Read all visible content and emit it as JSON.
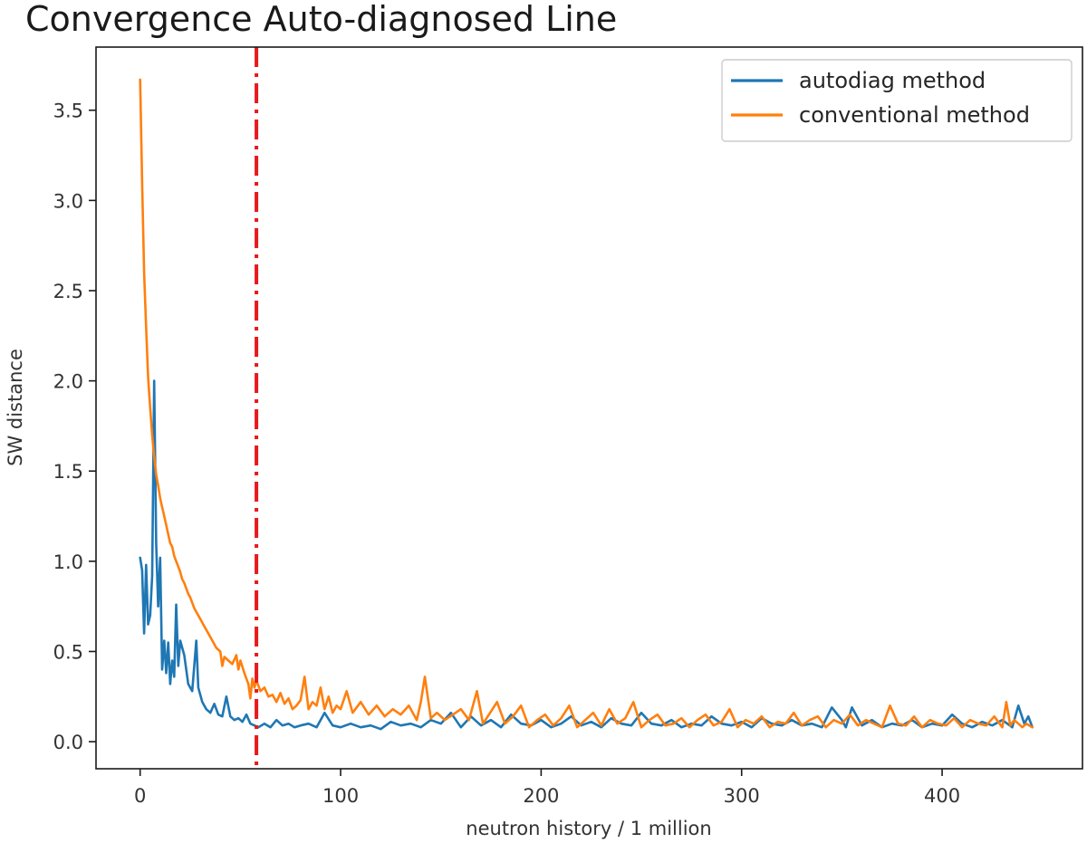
{
  "chart_data": {
    "type": "line",
    "title": "Convergence Auto-diagnosed Line",
    "xlabel": "neutron history / 1 million",
    "ylabel": "SW distance",
    "xlim": [
      -22,
      470
    ],
    "ylim": [
      -0.15,
      3.85
    ],
    "xticks": [
      0,
      100,
      200,
      300,
      400
    ],
    "yticks": [
      0.0,
      0.5,
      1.0,
      1.5,
      2.0,
      2.5,
      3.0,
      3.5
    ],
    "grid": false,
    "legend_position": "upper right",
    "legend": [
      "autodiag method",
      "conventional method"
    ],
    "vline": {
      "x": 58,
      "color": "#e8191c",
      "style": "dashdot"
    },
    "colors": {
      "autodiag": "#1f77b4",
      "conventional": "#ff7f0e"
    },
    "series": [
      {
        "name": "autodiag method",
        "color": "#1f77b4",
        "points": [
          [
            0,
            1.02
          ],
          [
            1,
            0.95
          ],
          [
            2,
            0.6
          ],
          [
            3,
            0.98
          ],
          [
            4,
            0.65
          ],
          [
            5,
            0.7
          ],
          [
            6,
            0.92
          ],
          [
            7,
            2.0
          ],
          [
            8,
            1.1
          ],
          [
            9,
            0.75
          ],
          [
            10,
            1.02
          ],
          [
            11,
            0.4
          ],
          [
            12,
            0.56
          ],
          [
            13,
            0.38
          ],
          [
            14,
            0.55
          ],
          [
            15,
            0.32
          ],
          [
            16,
            0.45
          ],
          [
            17,
            0.36
          ],
          [
            18,
            0.76
          ],
          [
            19,
            0.42
          ],
          [
            20,
            0.56
          ],
          [
            22,
            0.48
          ],
          [
            24,
            0.32
          ],
          [
            26,
            0.28
          ],
          [
            28,
            0.56
          ],
          [
            29,
            0.3
          ],
          [
            31,
            0.22
          ],
          [
            33,
            0.18
          ],
          [
            35,
            0.16
          ],
          [
            37,
            0.21
          ],
          [
            39,
            0.15
          ],
          [
            41,
            0.14
          ],
          [
            43,
            0.25
          ],
          [
            45,
            0.14
          ],
          [
            47,
            0.12
          ],
          [
            49,
            0.13
          ],
          [
            51,
            0.11
          ],
          [
            53,
            0.15
          ],
          [
            55,
            0.1
          ],
          [
            57,
            0.09
          ],
          [
            59,
            0.08
          ],
          [
            62,
            0.1
          ],
          [
            65,
            0.08
          ],
          [
            68,
            0.12
          ],
          [
            71,
            0.09
          ],
          [
            74,
            0.1
          ],
          [
            77,
            0.08
          ],
          [
            80,
            0.09
          ],
          [
            84,
            0.1
          ],
          [
            88,
            0.08
          ],
          [
            92,
            0.16
          ],
          [
            96,
            0.09
          ],
          [
            100,
            0.08
          ],
          [
            105,
            0.1
          ],
          [
            110,
            0.08
          ],
          [
            115,
            0.09
          ],
          [
            120,
            0.07
          ],
          [
            125,
            0.11
          ],
          [
            130,
            0.09
          ],
          [
            135,
            0.1
          ],
          [
            140,
            0.08
          ],
          [
            145,
            0.12
          ],
          [
            150,
            0.1
          ],
          [
            155,
            0.16
          ],
          [
            160,
            0.08
          ],
          [
            165,
            0.14
          ],
          [
            170,
            0.09
          ],
          [
            175,
            0.12
          ],
          [
            180,
            0.08
          ],
          [
            185,
            0.15
          ],
          [
            190,
            0.1
          ],
          [
            195,
            0.09
          ],
          [
            200,
            0.12
          ],
          [
            205,
            0.08
          ],
          [
            210,
            0.1
          ],
          [
            215,
            0.14
          ],
          [
            220,
            0.09
          ],
          [
            225,
            0.11
          ],
          [
            230,
            0.08
          ],
          [
            235,
            0.13
          ],
          [
            240,
            0.1
          ],
          [
            245,
            0.09
          ],
          [
            250,
            0.16
          ],
          [
            255,
            0.1
          ],
          [
            260,
            0.09
          ],
          [
            265,
            0.12
          ],
          [
            270,
            0.08
          ],
          [
            275,
            0.1
          ],
          [
            280,
            0.09
          ],
          [
            285,
            0.14
          ],
          [
            290,
            0.1
          ],
          [
            295,
            0.09
          ],
          [
            300,
            0.11
          ],
          [
            305,
            0.08
          ],
          [
            310,
            0.13
          ],
          [
            315,
            0.1
          ],
          [
            320,
            0.09
          ],
          [
            325,
            0.12
          ],
          [
            330,
            0.09
          ],
          [
            335,
            0.1
          ],
          [
            340,
            0.08
          ],
          [
            345,
            0.19
          ],
          [
            350,
            0.12
          ],
          [
            352,
            0.08
          ],
          [
            355,
            0.19
          ],
          [
            360,
            0.09
          ],
          [
            365,
            0.12
          ],
          [
            370,
            0.08
          ],
          [
            375,
            0.1
          ],
          [
            380,
            0.09
          ],
          [
            385,
            0.12
          ],
          [
            390,
            0.08
          ],
          [
            395,
            0.1
          ],
          [
            400,
            0.09
          ],
          [
            405,
            0.15
          ],
          [
            410,
            0.1
          ],
          [
            415,
            0.08
          ],
          [
            420,
            0.11
          ],
          [
            425,
            0.09
          ],
          [
            430,
            0.12
          ],
          [
            435,
            0.08
          ],
          [
            438,
            0.2
          ],
          [
            441,
            0.1
          ],
          [
            443,
            0.14
          ],
          [
            445,
            0.08
          ]
        ]
      },
      {
        "name": "conventional method",
        "color": "#ff7f0e",
        "points": [
          [
            0,
            3.67
          ],
          [
            1,
            3.1
          ],
          [
            2,
            2.6
          ],
          [
            3,
            2.3
          ],
          [
            4,
            2.02
          ],
          [
            5,
            1.85
          ],
          [
            6,
            1.7
          ],
          [
            7,
            1.58
          ],
          [
            8,
            1.48
          ],
          [
            9,
            1.42
          ],
          [
            10,
            1.35
          ],
          [
            11,
            1.3
          ],
          [
            12,
            1.25
          ],
          [
            13,
            1.2
          ],
          [
            14,
            1.15
          ],
          [
            15,
            1.1
          ],
          [
            16,
            1.08
          ],
          [
            17,
            1.03
          ],
          [
            18,
            1.0
          ],
          [
            19,
            0.97
          ],
          [
            20,
            0.94
          ],
          [
            21,
            0.9
          ],
          [
            22,
            0.88
          ],
          [
            23,
            0.85
          ],
          [
            24,
            0.82
          ],
          [
            25,
            0.8
          ],
          [
            26,
            0.77
          ],
          [
            27,
            0.74
          ],
          [
            28,
            0.72
          ],
          [
            29,
            0.7
          ],
          [
            30,
            0.68
          ],
          [
            32,
            0.64
          ],
          [
            34,
            0.6
          ],
          [
            36,
            0.56
          ],
          [
            38,
            0.52
          ],
          [
            40,
            0.5
          ],
          [
            41,
            0.42
          ],
          [
            42,
            0.47
          ],
          [
            44,
            0.45
          ],
          [
            46,
            0.43
          ],
          [
            48,
            0.48
          ],
          [
            49,
            0.4
          ],
          [
            50,
            0.45
          ],
          [
            52,
            0.38
          ],
          [
            54,
            0.32
          ],
          [
            55,
            0.24
          ],
          [
            56,
            0.35
          ],
          [
            57,
            0.3
          ],
          [
            58,
            0.34
          ],
          [
            60,
            0.28
          ],
          [
            62,
            0.3
          ],
          [
            64,
            0.25
          ],
          [
            66,
            0.26
          ],
          [
            68,
            0.22
          ],
          [
            70,
            0.27
          ],
          [
            72,
            0.21
          ],
          [
            74,
            0.24
          ],
          [
            76,
            0.18
          ],
          [
            78,
            0.2
          ],
          [
            80,
            0.23
          ],
          [
            82,
            0.36
          ],
          [
            84,
            0.18
          ],
          [
            86,
            0.22
          ],
          [
            88,
            0.2
          ],
          [
            90,
            0.3
          ],
          [
            92,
            0.18
          ],
          [
            94,
            0.25
          ],
          [
            96,
            0.16
          ],
          [
            98,
            0.2
          ],
          [
            100,
            0.18
          ],
          [
            103,
            0.28
          ],
          [
            106,
            0.16
          ],
          [
            110,
            0.22
          ],
          [
            114,
            0.15
          ],
          [
            118,
            0.2
          ],
          [
            122,
            0.14
          ],
          [
            126,
            0.18
          ],
          [
            130,
            0.15
          ],
          [
            134,
            0.2
          ],
          [
            138,
            0.12
          ],
          [
            140,
            0.22
          ],
          [
            142,
            0.36
          ],
          [
            145,
            0.13
          ],
          [
            148,
            0.16
          ],
          [
            152,
            0.12
          ],
          [
            156,
            0.15
          ],
          [
            160,
            0.18
          ],
          [
            164,
            0.12
          ],
          [
            168,
            0.28
          ],
          [
            171,
            0.1
          ],
          [
            174,
            0.15
          ],
          [
            178,
            0.22
          ],
          [
            182,
            0.1
          ],
          [
            186,
            0.14
          ],
          [
            190,
            0.2
          ],
          [
            194,
            0.08
          ],
          [
            198,
            0.12
          ],
          [
            202,
            0.15
          ],
          [
            206,
            0.09
          ],
          [
            210,
            0.13
          ],
          [
            214,
            0.2
          ],
          [
            218,
            0.08
          ],
          [
            222,
            0.12
          ],
          [
            226,
            0.16
          ],
          [
            230,
            0.09
          ],
          [
            234,
            0.18
          ],
          [
            238,
            0.1
          ],
          [
            242,
            0.13
          ],
          [
            246,
            0.22
          ],
          [
            250,
            0.08
          ],
          [
            254,
            0.12
          ],
          [
            258,
            0.15
          ],
          [
            262,
            0.09
          ],
          [
            266,
            0.1
          ],
          [
            270,
            0.13
          ],
          [
            274,
            0.08
          ],
          [
            278,
            0.12
          ],
          [
            282,
            0.15
          ],
          [
            286,
            0.09
          ],
          [
            290,
            0.11
          ],
          [
            294,
            0.18
          ],
          [
            298,
            0.08
          ],
          [
            302,
            0.12
          ],
          [
            306,
            0.1
          ],
          [
            310,
            0.14
          ],
          [
            314,
            0.08
          ],
          [
            318,
            0.11
          ],
          [
            322,
            0.1
          ],
          [
            326,
            0.16
          ],
          [
            330,
            0.09
          ],
          [
            334,
            0.12
          ],
          [
            338,
            0.14
          ],
          [
            342,
            0.08
          ],
          [
            346,
            0.12
          ],
          [
            350,
            0.1
          ],
          [
            354,
            0.15
          ],
          [
            358,
            0.09
          ],
          [
            362,
            0.12
          ],
          [
            366,
            0.1
          ],
          [
            370,
            0.08
          ],
          [
            374,
            0.2
          ],
          [
            378,
            0.1
          ],
          [
            382,
            0.09
          ],
          [
            386,
            0.14
          ],
          [
            390,
            0.08
          ],
          [
            394,
            0.12
          ],
          [
            398,
            0.1
          ],
          [
            402,
            0.09
          ],
          [
            406,
            0.13
          ],
          [
            410,
            0.08
          ],
          [
            414,
            0.12
          ],
          [
            418,
            0.1
          ],
          [
            422,
            0.09
          ],
          [
            426,
            0.14
          ],
          [
            430,
            0.08
          ],
          [
            432,
            0.22
          ],
          [
            434,
            0.09
          ],
          [
            436,
            0.12
          ],
          [
            438,
            0.1
          ],
          [
            440,
            0.08
          ],
          [
            442,
            0.1
          ],
          [
            445,
            0.08
          ]
        ]
      }
    ]
  }
}
